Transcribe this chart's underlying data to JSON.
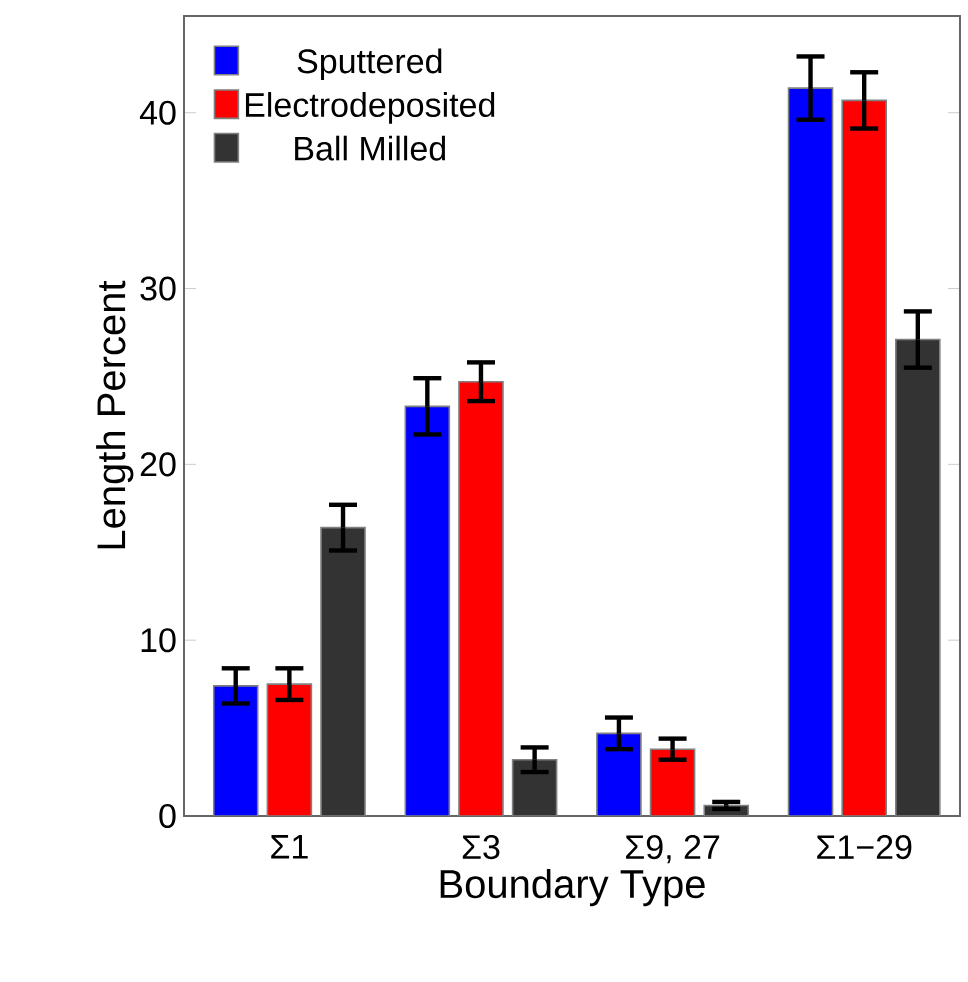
{
  "chart_data": {
    "type": "bar",
    "xlabel": "Boundary Type",
    "ylabel": "Length Percent",
    "categories": [
      "Σ1",
      "Σ3",
      "Σ9, 27",
      "Σ1−29"
    ],
    "series": [
      {
        "name": "Sputtered",
        "color": "#0000ff",
        "values": [
          7.4,
          23.3,
          4.7,
          41.4
        ],
        "errors": [
          1.0,
          1.6,
          0.9,
          1.8
        ]
      },
      {
        "name": "Electrodeposited",
        "color": "#ff0000",
        "values": [
          7.5,
          24.7,
          3.8,
          40.7
        ],
        "errors": [
          0.9,
          1.1,
          0.6,
          1.6
        ]
      },
      {
        "name": "Ball Milled",
        "color": "#333333",
        "values": [
          16.4,
          3.2,
          0.6,
          27.1
        ],
        "errors": [
          1.3,
          0.7,
          0.2,
          1.6
        ]
      }
    ],
    "ylim": [
      0,
      45.5
    ],
    "yticks": [
      0,
      10,
      20,
      30,
      40
    ],
    "grid": false,
    "legend": "top left"
  }
}
